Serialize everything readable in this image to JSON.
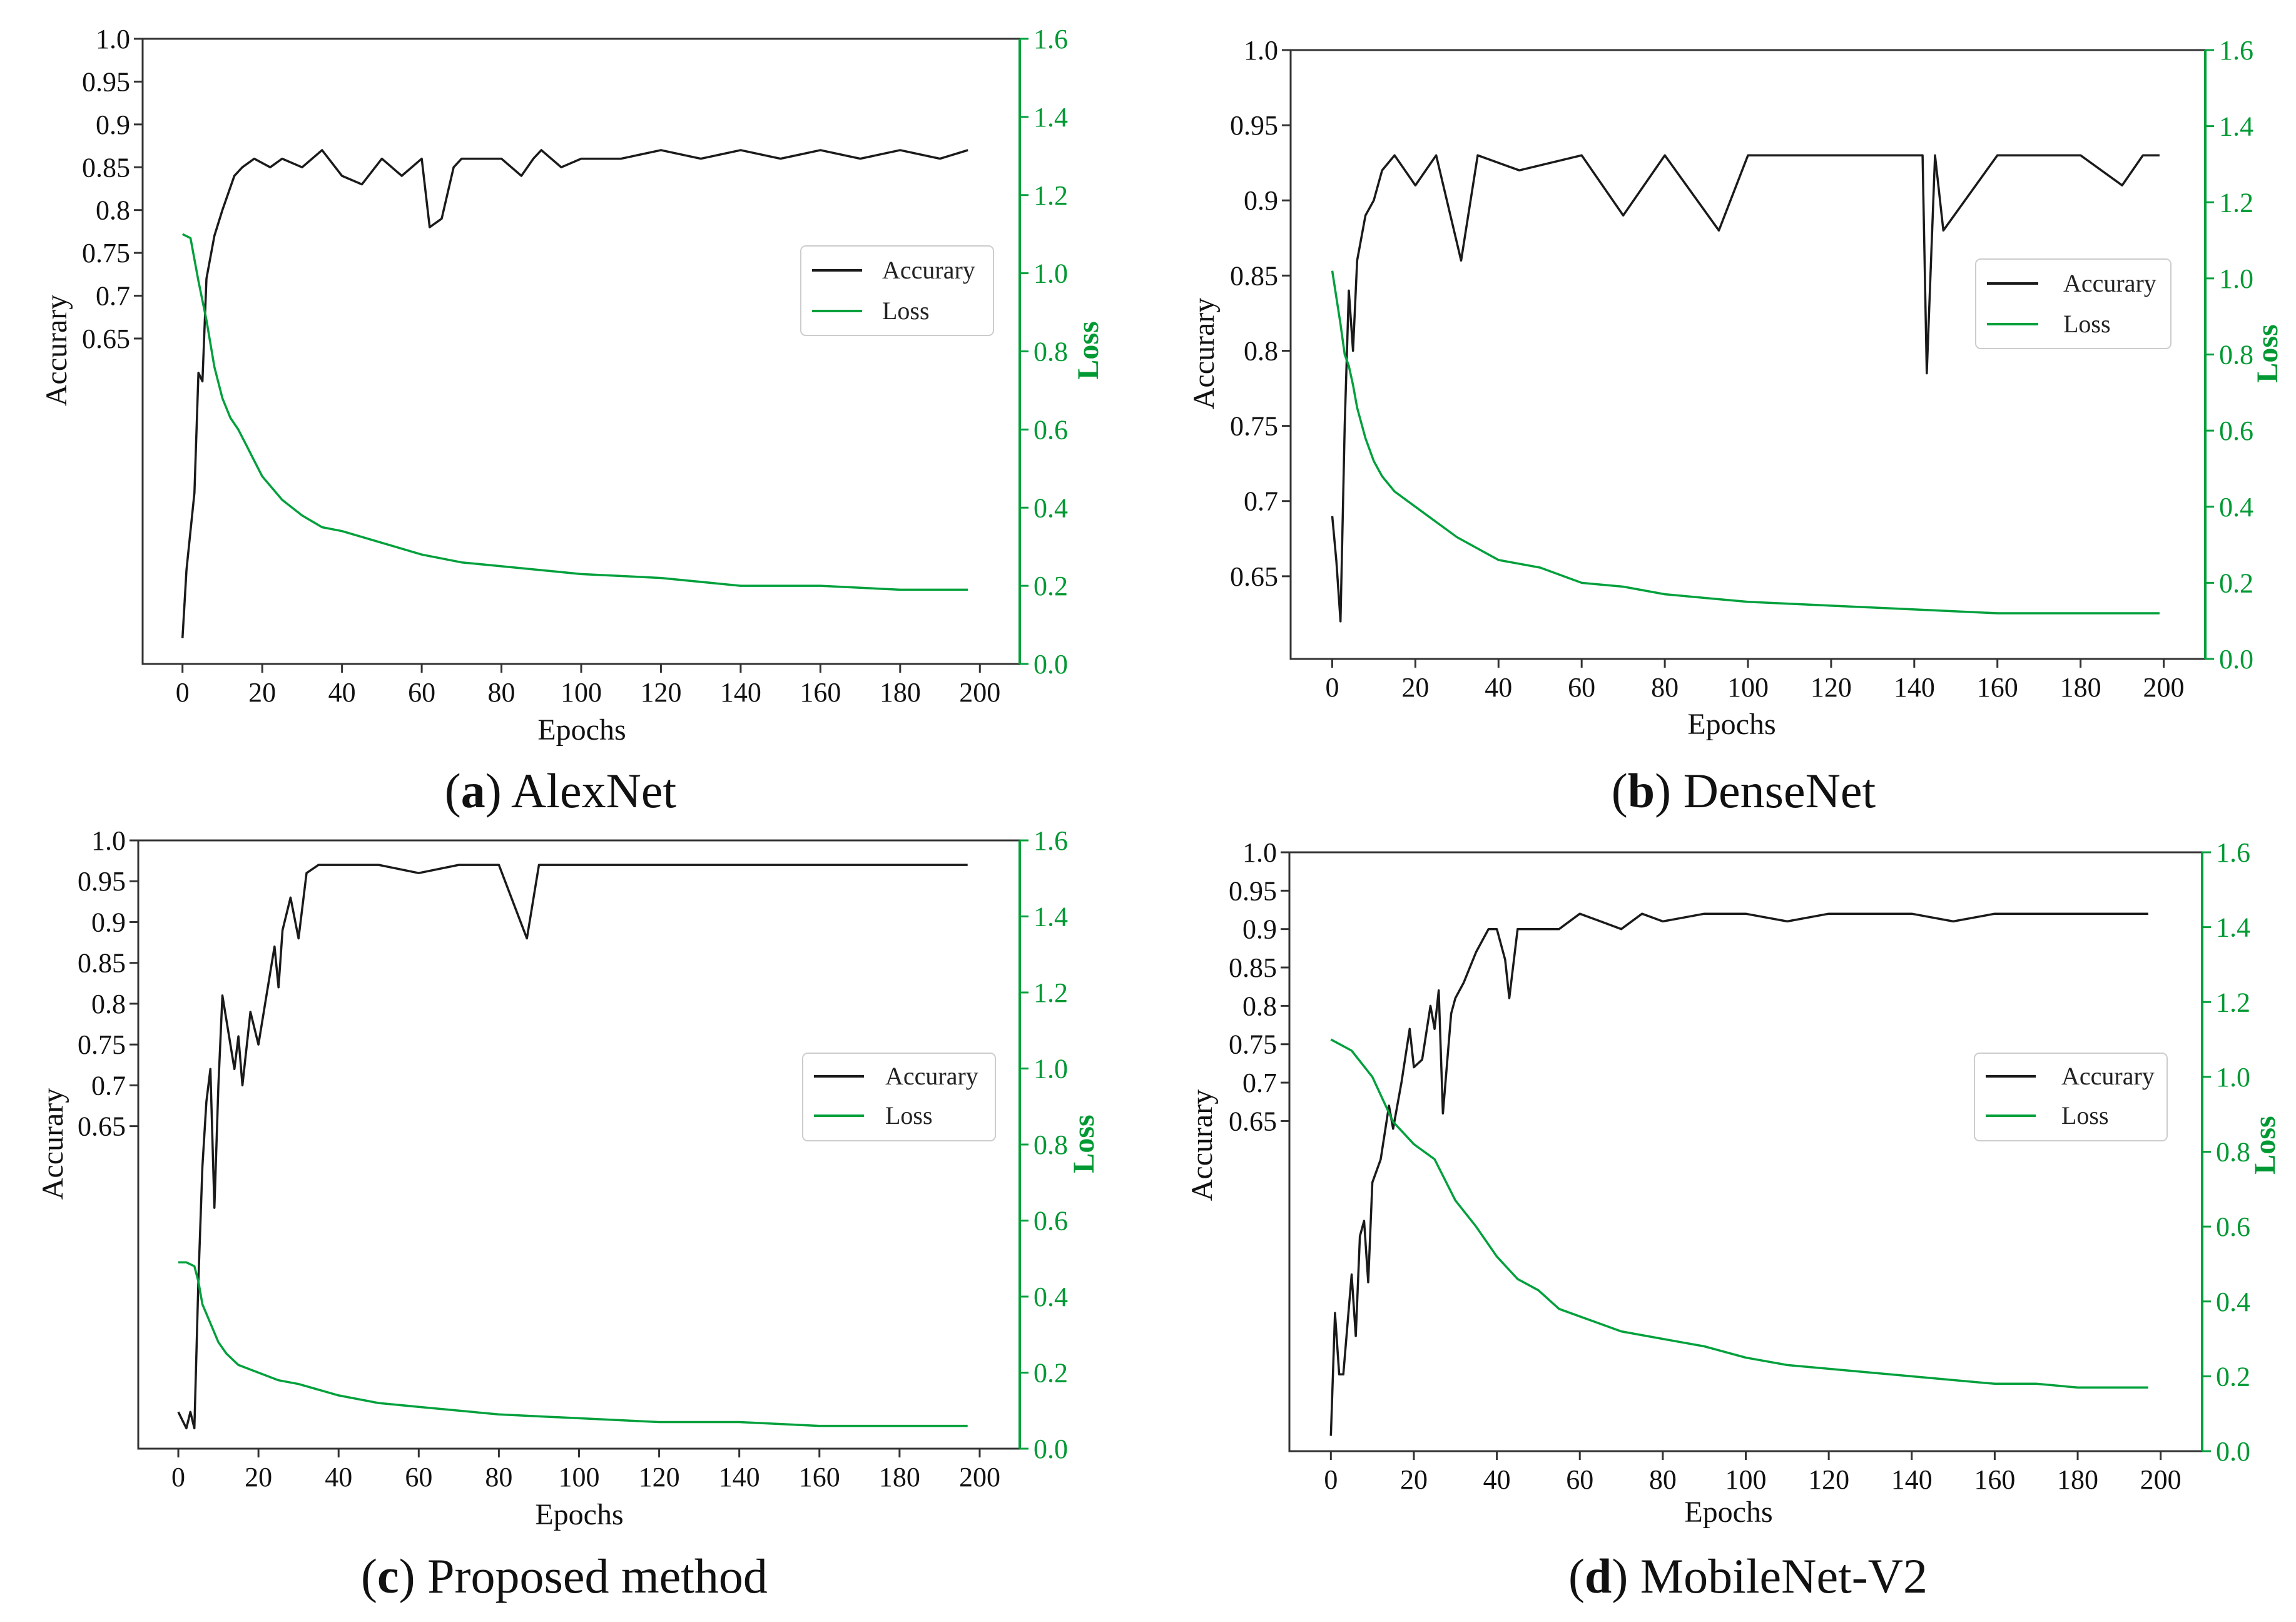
{
  "colors": {
    "accuracy": "#1a1a1a",
    "loss": "#00a03c",
    "frame": "#333333",
    "background": "#ffffff"
  },
  "chart_data": [
    {
      "type": "line",
      "caption_letter": "a",
      "caption_text": "AlexNet",
      "xlabel": "Epochs",
      "ylabel": "Accurary",
      "y2label": "Loss",
      "x_ticks": [
        "0",
        "20",
        "40",
        "60",
        "80",
        "100",
        "120",
        "140",
        "160",
        "180",
        "200"
      ],
      "xlim": [
        -10,
        210
      ],
      "acc_ticks": [
        "1.0",
        "0.95",
        "0.9",
        "0.85",
        "0.8",
        "0.75",
        "0.7",
        "0.65"
      ],
      "acc_tick_values": [
        1.0,
        0.95,
        0.9,
        0.85,
        0.8,
        0.75,
        0.7,
        0.65
      ],
      "acc_lim": [
        0.27,
        1.0
      ],
      "loss_ticks": [
        "1.6",
        "1.4",
        "1.2",
        "1.0",
        "0.8",
        "0.6",
        "0.4",
        "0.2",
        "0.0"
      ],
      "loss_lim": [
        0,
        1.6
      ],
      "legend": [
        "Accurary",
        "Loss"
      ],
      "legend_position": "middle-right",
      "series": [
        {
          "name": "Accurary",
          "axis": "left",
          "x": [
            0,
            1,
            3,
            4,
            5,
            6,
            8,
            10,
            13,
            15,
            18,
            22,
            25,
            30,
            35,
            40,
            45,
            50,
            55,
            60,
            62,
            65,
            68,
            70,
            80,
            85,
            88,
            90,
            95,
            100,
            110,
            120,
            130,
            140,
            150,
            160,
            170,
            180,
            190,
            197
          ],
          "values": [
            0.3,
            0.38,
            0.47,
            0.61,
            0.6,
            0.72,
            0.77,
            0.8,
            0.84,
            0.85,
            0.86,
            0.85,
            0.86,
            0.85,
            0.87,
            0.84,
            0.83,
            0.86,
            0.84,
            0.86,
            0.78,
            0.79,
            0.85,
            0.86,
            0.86,
            0.84,
            0.86,
            0.87,
            0.85,
            0.86,
            0.86,
            0.87,
            0.86,
            0.87,
            0.86,
            0.87,
            0.86,
            0.87,
            0.86,
            0.87
          ]
        },
        {
          "name": "Loss",
          "axis": "right",
          "x": [
            0,
            2,
            4,
            6,
            8,
            10,
            12,
            14,
            16,
            18,
            20,
            25,
            30,
            35,
            40,
            50,
            60,
            70,
            80,
            90,
            100,
            120,
            140,
            160,
            180,
            197
          ],
          "values": [
            1.1,
            1.09,
            0.98,
            0.88,
            0.76,
            0.68,
            0.63,
            0.6,
            0.56,
            0.52,
            0.48,
            0.42,
            0.38,
            0.35,
            0.34,
            0.31,
            0.28,
            0.26,
            0.25,
            0.24,
            0.23,
            0.22,
            0.2,
            0.2,
            0.19,
            0.19
          ]
        }
      ]
    },
    {
      "type": "line",
      "caption_letter": "b",
      "caption_text": "DenseNet",
      "xlabel": "Epochs",
      "ylabel": "Accurary",
      "y2label": "Loss",
      "x_ticks": [
        "0",
        "20",
        "40",
        "60",
        "80",
        "100",
        "120",
        "140",
        "160",
        "180",
        "200"
      ],
      "xlim": [
        -10,
        210
      ],
      "acc_ticks": [
        "1.0",
        "0.95",
        "0.9",
        "0.85",
        "0.8",
        "0.75",
        "0.7",
        "0.65"
      ],
      "acc_tick_values": [
        1.0,
        0.95,
        0.9,
        0.85,
        0.8,
        0.75,
        0.7,
        0.65
      ],
      "acc_lim": [
        0.595,
        1.0
      ],
      "loss_ticks": [
        "1.6",
        "1.4",
        "1.2",
        "1.0",
        "0.8",
        "0.6",
        "0.4",
        "0.2",
        "0.0"
      ],
      "loss_lim": [
        0,
        1.6
      ],
      "legend": [
        "Accurary",
        "Loss"
      ],
      "legend_position": "middle-right",
      "series": [
        {
          "name": "Accurary",
          "axis": "left",
          "x": [
            0,
            1,
            2,
            3,
            4,
            5,
            6,
            8,
            10,
            12,
            15,
            20,
            25,
            31,
            35,
            45,
            60,
            70,
            80,
            93,
            100,
            120,
            140,
            142,
            143,
            145,
            147,
            160,
            180,
            190,
            195,
            199
          ],
          "values": [
            0.69,
            0.66,
            0.62,
            0.75,
            0.84,
            0.8,
            0.86,
            0.89,
            0.9,
            0.92,
            0.93,
            0.91,
            0.93,
            0.86,
            0.93,
            0.92,
            0.93,
            0.89,
            0.93,
            0.88,
            0.93,
            0.93,
            0.93,
            0.93,
            0.785,
            0.93,
            0.88,
            0.93,
            0.93,
            0.91,
            0.93,
            0.93
          ]
        },
        {
          "name": "Loss",
          "axis": "right",
          "x": [
            0,
            1,
            2,
            3,
            4,
            5,
            6,
            8,
            10,
            12,
            15,
            20,
            25,
            30,
            40,
            50,
            60,
            70,
            80,
            90,
            100,
            120,
            140,
            160,
            180,
            199
          ],
          "values": [
            1.02,
            0.95,
            0.88,
            0.8,
            0.77,
            0.72,
            0.66,
            0.58,
            0.52,
            0.48,
            0.44,
            0.4,
            0.36,
            0.32,
            0.26,
            0.24,
            0.2,
            0.19,
            0.17,
            0.16,
            0.15,
            0.14,
            0.13,
            0.12,
            0.12,
            0.12
          ]
        }
      ]
    },
    {
      "type": "line",
      "caption_letter": "c",
      "caption_text": "Proposed method",
      "xlabel": "Epochs",
      "ylabel": "Accurary",
      "y2label": "Loss",
      "x_ticks": [
        "0",
        "20",
        "40",
        "60",
        "80",
        "100",
        "120",
        "140",
        "160",
        "180",
        "200"
      ],
      "xlim": [
        -10,
        210
      ],
      "acc_ticks": [
        "1.0",
        "0.95",
        "0.9",
        "0.85",
        "0.8",
        "0.75",
        "0.7",
        "0.65"
      ],
      "acc_tick_values": [
        1.0,
        0.95,
        0.9,
        0.85,
        0.8,
        0.75,
        0.7,
        0.65
      ],
      "acc_lim": [
        0.255,
        1.0
      ],
      "loss_ticks": [
        "1.6",
        "1.4",
        "1.2",
        "1.0",
        "0.8",
        "0.6",
        "0.4",
        "0.2",
        "0.0"
      ],
      "loss_lim": [
        0,
        1.6
      ],
      "legend": [
        "Accurary",
        "Loss"
      ],
      "legend_position": "middle-right",
      "series": [
        {
          "name": "Accurary",
          "axis": "left",
          "x": [
            0,
            1,
            2,
            3,
            4,
            5,
            6,
            7,
            8,
            9,
            10,
            11,
            12,
            14,
            15,
            16,
            18,
            20,
            22,
            24,
            25,
            26,
            28,
            30,
            32,
            35,
            40,
            50,
            60,
            70,
            80,
            87,
            90,
            100,
            110,
            120,
            140,
            160,
            180,
            197
          ],
          "values": [
            0.3,
            0.29,
            0.28,
            0.3,
            0.28,
            0.46,
            0.6,
            0.68,
            0.72,
            0.55,
            0.7,
            0.81,
            0.78,
            0.72,
            0.76,
            0.7,
            0.79,
            0.75,
            0.81,
            0.87,
            0.82,
            0.89,
            0.93,
            0.88,
            0.96,
            0.97,
            0.97,
            0.97,
            0.96,
            0.97,
            0.97,
            0.88,
            0.97,
            0.97,
            0.97,
            0.97,
            0.97,
            0.97,
            0.97,
            0.97
          ]
        },
        {
          "name": "Loss",
          "axis": "right",
          "x": [
            0,
            2,
            4,
            5,
            6,
            8,
            10,
            12,
            15,
            20,
            25,
            30,
            40,
            50,
            60,
            80,
            100,
            120,
            140,
            160,
            180,
            197
          ],
          "values": [
            0.49,
            0.49,
            0.48,
            0.44,
            0.38,
            0.33,
            0.28,
            0.25,
            0.22,
            0.2,
            0.18,
            0.17,
            0.14,
            0.12,
            0.11,
            0.09,
            0.08,
            0.07,
            0.07,
            0.06,
            0.06,
            0.06
          ]
        }
      ]
    },
    {
      "type": "line",
      "caption_letter": "d",
      "caption_text": "MobileNet-V2",
      "xlabel": "Epochs",
      "ylabel": "Accurary",
      "y2label": "Loss",
      "x_ticks": [
        "0",
        "20",
        "40",
        "60",
        "80",
        "100",
        "120",
        "140",
        "160",
        "180",
        "200"
      ],
      "xlim": [
        -10,
        210
      ],
      "acc_ticks": [
        "1.0",
        "0.95",
        "0.9",
        "0.85",
        "0.8",
        "0.75",
        "0.7",
        "0.65"
      ],
      "acc_tick_values": [
        1.0,
        0.95,
        0.9,
        0.85,
        0.8,
        0.75,
        0.7,
        0.65
      ],
      "acc_lim": [
        0.22,
        1.0
      ],
      "loss_ticks": [
        "1.6",
        "1.4",
        "1.2",
        "1.0",
        "0.8",
        "0.6",
        "0.4",
        "0.2",
        "0.0"
      ],
      "loss_lim": [
        0,
        1.6
      ],
      "legend": [
        "Accurary",
        "Loss"
      ],
      "legend_position": "middle-right",
      "series": [
        {
          "name": "Accurary",
          "axis": "left",
          "x": [
            0,
            1,
            2,
            3,
            5,
            6,
            7,
            8,
            9,
            10,
            12,
            14,
            15,
            17,
            19,
            20,
            22,
            24,
            25,
            26,
            27,
            29,
            30,
            32,
            35,
            38,
            40,
            42,
            43,
            45,
            50,
            55,
            60,
            65,
            70,
            75,
            80,
            90,
            100,
            110,
            120,
            130,
            140,
            150,
            160,
            170,
            180,
            190,
            197
          ],
          "values": [
            0.24,
            0.4,
            0.32,
            0.32,
            0.45,
            0.37,
            0.5,
            0.52,
            0.44,
            0.57,
            0.6,
            0.67,
            0.64,
            0.7,
            0.77,
            0.72,
            0.73,
            0.8,
            0.77,
            0.82,
            0.66,
            0.79,
            0.81,
            0.83,
            0.87,
            0.9,
            0.9,
            0.86,
            0.81,
            0.9,
            0.9,
            0.9,
            0.92,
            0.91,
            0.9,
            0.92,
            0.91,
            0.92,
            0.92,
            0.91,
            0.92,
            0.92,
            0.92,
            0.91,
            0.92,
            0.92,
            0.92,
            0.92,
            0.92
          ]
        },
        {
          "name": "Loss",
          "axis": "right",
          "x": [
            0,
            5,
            10,
            15,
            20,
            25,
            30,
            35,
            40,
            45,
            50,
            55,
            60,
            70,
            80,
            90,
            100,
            110,
            120,
            130,
            140,
            150,
            160,
            170,
            180,
            190,
            197
          ],
          "values": [
            1.1,
            1.07,
            1.0,
            0.88,
            0.82,
            0.78,
            0.67,
            0.6,
            0.52,
            0.46,
            0.43,
            0.38,
            0.36,
            0.32,
            0.3,
            0.28,
            0.25,
            0.23,
            0.22,
            0.21,
            0.2,
            0.19,
            0.18,
            0.18,
            0.17,
            0.17,
            0.17
          ]
        }
      ]
    }
  ]
}
